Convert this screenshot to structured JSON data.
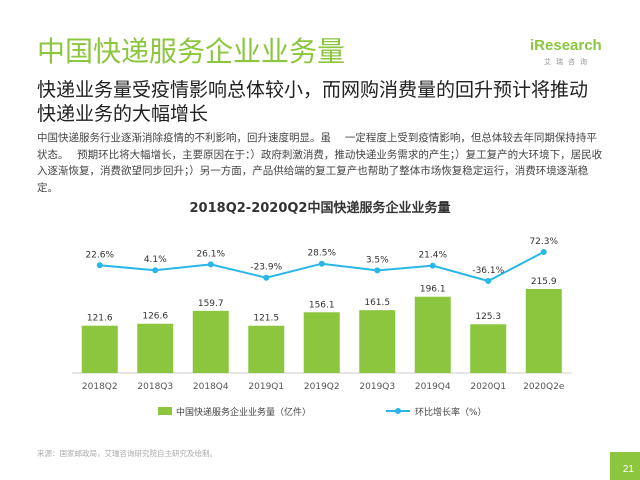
{
  "page": {
    "title": "中国快递服务企业业务量",
    "logo_text": "Research",
    "logo_i": "i",
    "logo_sub": "艾瑞咨询",
    "headline": "快递业务量受疫情影响总体较小，而网购消费量的回升预计将推动　 快递业务的大幅增长",
    "body": "中国快递服务行业逐渐消除疫情的不利影响，回升速度明显。虽　 一定程度上受到疫情影响，但总体较去年同期保持持平状态。　 预期环比将大幅增长，主要原因在于：）政府刺激消费，推动快递业务需求的产生；）复工复产的大环境下，居民收入逐渐恢复，消费欲望同步回升；）另一方面，产品供给端的复工复产也帮助了整体市场恢复稳定运行，消费环境逐渐稳定。",
    "source": "来源：国家邮政局，艾瑞咨询研究院自主研究及绘制。",
    "page_number": "21"
  },
  "colors": {
    "brand_green": "#8cc63f",
    "bar": "#8cc63f",
    "line": "#29b6e8",
    "axis": "#cccccc"
  },
  "chart_data": {
    "type": "bar",
    "title": "2018Q2-2020Q2中国快递服务企业业务量",
    "categories": [
      "2018Q2",
      "2018Q3",
      "2018Q4",
      "2019Q1",
      "2019Q2",
      "2019Q3",
      "2019Q4",
      "2020Q1",
      "2020Q2e"
    ],
    "series": [
      {
        "name": "中国快递服务企业业务量（亿件）",
        "type": "bar",
        "values": [
          121.6,
          126.6,
          159.7,
          121.5,
          156.1,
          161.5,
          196.1,
          125.3,
          215.9
        ],
        "labels": [
          "121.6",
          "126.6",
          "159.7",
          "121.5",
          "156.1",
          "161.5",
          "196.1",
          "125.3",
          "215.9"
        ]
      },
      {
        "name": "环比增长率（%）",
        "type": "line",
        "values": [
          22.6,
          4.1,
          26.1,
          -23.9,
          28.5,
          3.5,
          21.4,
          -36.1,
          72.3
        ],
        "labels": [
          "22.6%",
          "4.1%",
          "26.1%",
          "-23.9%",
          "28.5%",
          "3.5%",
          "21.4%",
          "-36.1%",
          "72.3%"
        ]
      }
    ],
    "legend_position": "bottom",
    "grid": false
  }
}
